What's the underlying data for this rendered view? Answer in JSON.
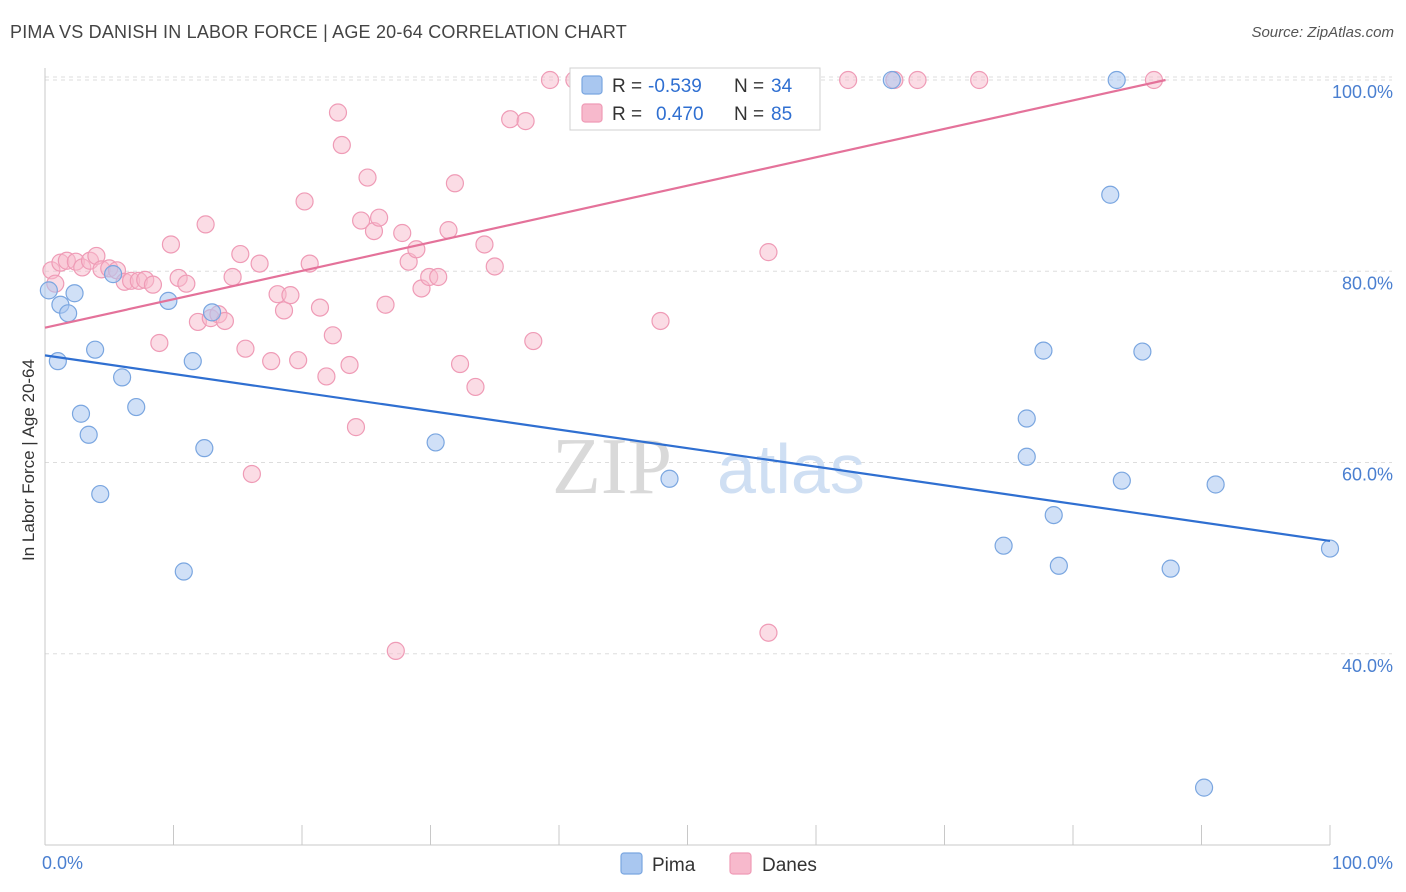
{
  "header": {
    "title": "PIMA VS DANISH IN LABOR FORCE | AGE 20-64 CORRELATION CHART",
    "source": "Source: ZipAtlas.com"
  },
  "watermark": {
    "zip": "ZIP",
    "atlas": "atlas"
  },
  "legend": {
    "pima": {
      "r_label": "R =",
      "r_value": "-0.539",
      "n_label": "N =",
      "n_value": "34"
    },
    "danes": {
      "r_label": "R =",
      "r_value": "0.470",
      "n_label": "N =",
      "n_value": "85"
    }
  },
  "bottom_legend": {
    "pima": "Pima",
    "danes": "Danes"
  },
  "colors": {
    "pima_fill": "#a9c7f0",
    "pima_stroke": "#7aa6e0",
    "pima_line": "#2f6fd1",
    "danes_fill": "#f7b9cc",
    "danes_stroke": "#ef9bb6",
    "danes_line": "#e4729a",
    "tick_text": "#4a7fd0"
  },
  "chart_data": {
    "type": "scatter",
    "title": "PIMA VS DANISH IN LABOR FORCE | AGE 20-64 CORRELATION CHART",
    "xlabel": "",
    "ylabel": "In Labor Force | Age 20-64",
    "xlim": [
      0,
      100
    ],
    "ylim": [
      20,
      100
    ],
    "x_tick_labels": [
      "0.0%",
      "100.0%"
    ],
    "y_ticks": [
      40,
      60,
      80,
      100
    ],
    "y_tick_labels": [
      "40.0%",
      "60.0%",
      "80.0%",
      "100.0%"
    ],
    "grid": "horizontal dashed",
    "legend_placement": "top-center",
    "series": [
      {
        "name": "Pima",
        "trend": {
          "x": [
            0,
            100
          ],
          "y": [
            71.2,
            51.8
          ]
        },
        "points": [
          [
            0.3,
            78.0
          ],
          [
            1.2,
            76.5
          ],
          [
            1.0,
            70.6
          ],
          [
            2.3,
            77.7
          ],
          [
            1.8,
            75.6
          ],
          [
            2.8,
            65.1
          ],
          [
            3.4,
            62.9
          ],
          [
            3.9,
            71.8
          ],
          [
            4.3,
            56.7
          ],
          [
            5.3,
            79.7
          ],
          [
            6.0,
            68.9
          ],
          [
            7.1,
            65.8
          ],
          [
            9.6,
            76.9
          ],
          [
            10.8,
            48.6
          ],
          [
            11.5,
            70.6
          ],
          [
            12.4,
            61.5
          ],
          [
            13.0,
            75.7
          ],
          [
            30.4,
            62.1
          ],
          [
            48.6,
            58.3
          ],
          [
            65.9,
            100.0
          ],
          [
            74.6,
            51.3
          ],
          [
            76.4,
            60.6
          ],
          [
            78.5,
            54.5
          ],
          [
            82.9,
            88.0
          ],
          [
            83.4,
            100.0
          ],
          [
            76.4,
            64.6
          ],
          [
            77.7,
            71.7
          ],
          [
            78.9,
            49.2
          ],
          [
            83.8,
            58.1
          ],
          [
            85.4,
            71.6
          ],
          [
            87.6,
            48.9
          ],
          [
            91.1,
            57.7
          ],
          [
            90.2,
            26.0
          ],
          [
            100.0,
            51.0
          ]
        ]
      },
      {
        "name": "Danes",
        "trend": {
          "x": [
            0,
            87.2
          ],
          "y": [
            74.1,
            100.0
          ]
        },
        "points": [
          [
            0.5,
            80.1
          ],
          [
            0.8,
            78.7
          ],
          [
            1.2,
            80.9
          ],
          [
            1.7,
            81.1
          ],
          [
            2.4,
            81.0
          ],
          [
            2.9,
            80.4
          ],
          [
            3.5,
            81.1
          ],
          [
            4.0,
            81.6
          ],
          [
            4.4,
            80.2
          ],
          [
            5.0,
            80.3
          ],
          [
            5.6,
            80.1
          ],
          [
            6.2,
            78.9
          ],
          [
            6.7,
            79.0
          ],
          [
            7.3,
            79.0
          ],
          [
            7.8,
            79.1
          ],
          [
            8.4,
            78.6
          ],
          [
            8.9,
            72.5
          ],
          [
            9.8,
            82.8
          ],
          [
            10.4,
            79.3
          ],
          [
            11.0,
            78.7
          ],
          [
            11.9,
            74.7
          ],
          [
            12.5,
            84.9
          ],
          [
            12.9,
            75.1
          ],
          [
            13.5,
            75.5
          ],
          [
            14.0,
            74.8
          ],
          [
            14.6,
            79.4
          ],
          [
            15.2,
            81.8
          ],
          [
            15.6,
            71.9
          ],
          [
            16.1,
            58.8
          ],
          [
            16.7,
            80.8
          ],
          [
            17.6,
            70.6
          ],
          [
            18.1,
            77.6
          ],
          [
            18.6,
            75.9
          ],
          [
            19.1,
            77.5
          ],
          [
            19.7,
            70.7
          ],
          [
            20.2,
            87.3
          ],
          [
            20.6,
            80.8
          ],
          [
            21.4,
            76.2
          ],
          [
            21.9,
            69.0
          ],
          [
            22.4,
            73.3
          ],
          [
            22.8,
            96.6
          ],
          [
            23.1,
            93.2
          ],
          [
            23.7,
            70.2
          ],
          [
            24.2,
            63.7
          ],
          [
            24.6,
            85.3
          ],
          [
            25.1,
            89.8
          ],
          [
            25.6,
            84.2
          ],
          [
            26.0,
            85.6
          ],
          [
            26.5,
            76.5
          ],
          [
            27.3,
            40.3
          ],
          [
            27.8,
            84.0
          ],
          [
            28.3,
            81.0
          ],
          [
            28.9,
            82.3
          ],
          [
            29.3,
            78.2
          ],
          [
            29.9,
            79.4
          ],
          [
            30.6,
            79.4
          ],
          [
            31.4,
            84.3
          ],
          [
            31.9,
            89.2
          ],
          [
            32.3,
            70.3
          ],
          [
            33.5,
            67.9
          ],
          [
            34.2,
            82.8
          ],
          [
            35.0,
            80.5
          ],
          [
            36.2,
            95.9
          ],
          [
            37.4,
            95.7
          ],
          [
            38.0,
            72.7
          ],
          [
            39.3,
            100.0
          ],
          [
            41.2,
            100.0
          ],
          [
            43.4,
            100.0
          ],
          [
            44.8,
            100.0
          ],
          [
            46.4,
            100.0
          ],
          [
            47.6,
            100.0
          ],
          [
            49.7,
            100.0
          ],
          [
            50.3,
            100.0
          ],
          [
            51.6,
            100.0
          ],
          [
            53.2,
            100.0
          ],
          [
            54.9,
            100.0
          ],
          [
            56.3,
            82.0
          ],
          [
            57.4,
            100.0
          ],
          [
            62.5,
            100.0
          ],
          [
            66.1,
            100.0
          ],
          [
            67.9,
            100.0
          ],
          [
            72.7,
            100.0
          ],
          [
            56.3,
            42.2
          ],
          [
            47.9,
            74.8
          ],
          [
            86.3,
            100.0
          ]
        ]
      }
    ]
  }
}
